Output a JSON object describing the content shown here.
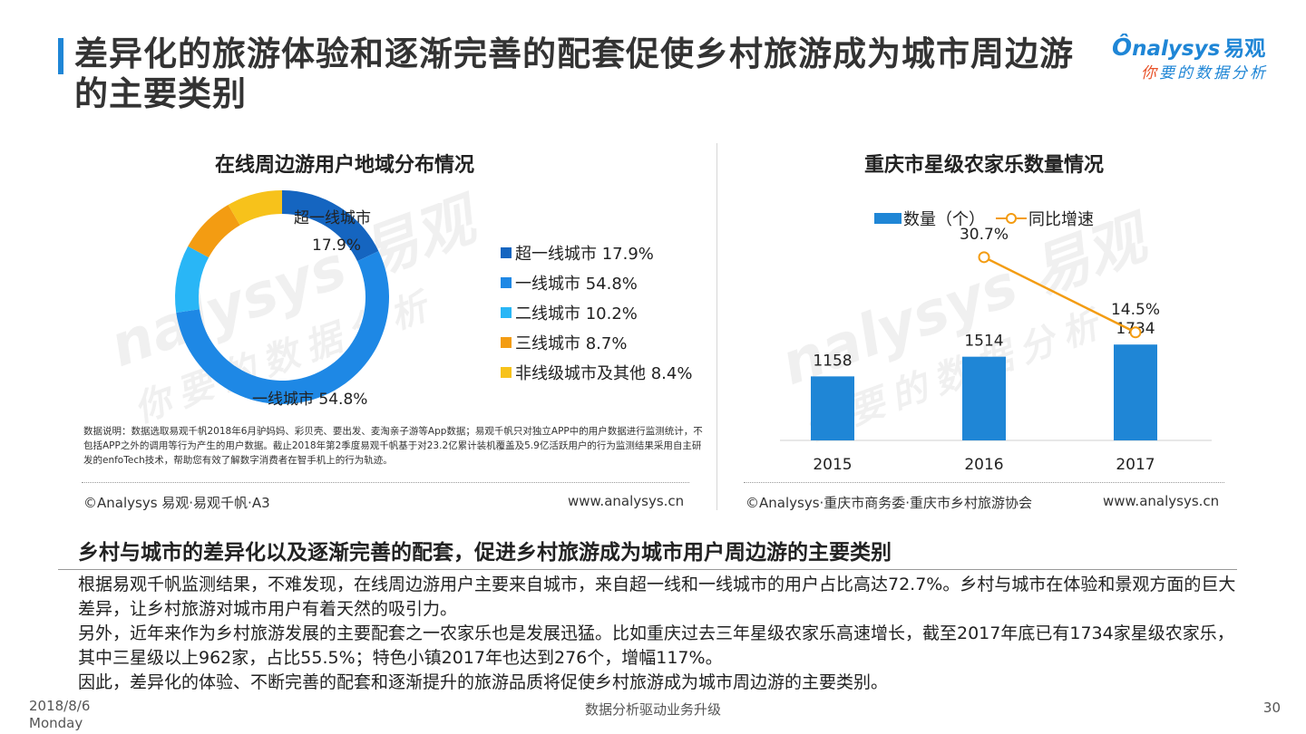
{
  "header": {
    "title": "差异化的旅游体验和逐渐完善的配套促使乡村旅游成为城市周边游的主要类别",
    "logo_text": "nalysys",
    "logo_cn": "易观",
    "logo_sub_first": "你",
    "logo_sub_rest": "要的数据分析"
  },
  "watermark": {
    "main": "nalysys 易观",
    "sub": "你要的数据分析"
  },
  "left_panel": {
    "title": "在线周边游用户地域分布情况",
    "note": "数据说明：数据选取易观千帆2018年6月驴妈妈、彩贝壳、要出发、麦淘亲子游等App数据；易观千帆只对独立APP中的用户数据进行监测统计，不包括APP之外的调用等行为产生的用户数据。截止2018年第2季度易观千帆基于对23.2亿累计装机覆盖及5.9亿活跃用户的行为监测结果采用自主研发的enfoTech技术，帮助您有效了解数字消费者在智手机上的行为轨迹。",
    "source_left": "©Analysys 易观·易观千帆·A3",
    "source_right": "www.analysys.cn"
  },
  "right_panel": {
    "title": "重庆市星级农家乐数量情况",
    "source_left": "©Analysys·重庆市商务委·重庆市乡村旅游协会",
    "source_right": "www.analysys.cn"
  },
  "chart_data": [
    {
      "type": "pie",
      "title": "在线周边游用户地域分布情况",
      "categories": [
        "超一线城市",
        "一线城市",
        "二线城市",
        "三线城市",
        "非线级城市及其他"
      ],
      "values": [
        17.9,
        54.8,
        10.2,
        8.7,
        8.4
      ],
      "value_labels": [
        "17.9%",
        "54.8%",
        "10.2%",
        "8.7%",
        "8.4%"
      ],
      "colors": [
        "#1565c0",
        "#1e88e5",
        "#29b6f6",
        "#f39c12",
        "#f7c21b"
      ],
      "legend_labels": [
        "超一线城市 17.9%",
        "一线城市 54.8%",
        "二线城市 10.2%",
        "三线城市 8.7%",
        "非线级城市及其他 8.4%"
      ],
      "slice_annotations": [
        {
          "name": "超一线城市",
          "value": "17.9%"
        },
        {
          "label": "一线城市 54.8%"
        }
      ],
      "legend": "right"
    },
    {
      "type": "bar",
      "title": "重庆市星级农家乐数量情况",
      "categories": [
        "2015",
        "2016",
        "2017"
      ],
      "series": [
        {
          "name": "数量（个）",
          "type": "bar",
          "values": [
            1158,
            1514,
            1734
          ],
          "labels": [
            "1158",
            "1514",
            "1734"
          ],
          "color": "#1f86d6"
        },
        {
          "name": "同比增速",
          "type": "line",
          "values": [
            null,
            30.7,
            14.5
          ],
          "labels": [
            "",
            "30.7%",
            "14.5%"
          ],
          "color": "#f39c12"
        }
      ],
      "legend": "top"
    }
  ],
  "section": {
    "heading": "乡村与城市的差异化以及逐渐完善的配套，促进乡村旅游成为城市用户周边游的主要类别",
    "paragraphs": [
      "根据易观千帆监测结果，不难发现，在线周边游用户主要来自城市，来自超一线和一线城市的用户占比高达72.7%。乡村与城市在体验和景观方面的巨大差异，让乡村旅游对城市用户有着天然的吸引力。",
      "另外，近年来作为乡村旅游发展的主要配套之一农家乐也是发展迅猛。比如重庆过去三年星级农家乐高速增长，截至2017年底已有1734家星级农家乐，其中三星级以上962家，占比55.5%；特色小镇2017年也达到276个，增幅117%。",
      "因此，差异化的体验、不断完善的配套和逐渐提升的旅游品质将促使乡村旅游成为城市周边游的主要类别。"
    ]
  },
  "footer": {
    "date": "2018/8/6",
    "weekday": "Monday",
    "center": "数据分析驱动业务升级",
    "page": "30"
  }
}
